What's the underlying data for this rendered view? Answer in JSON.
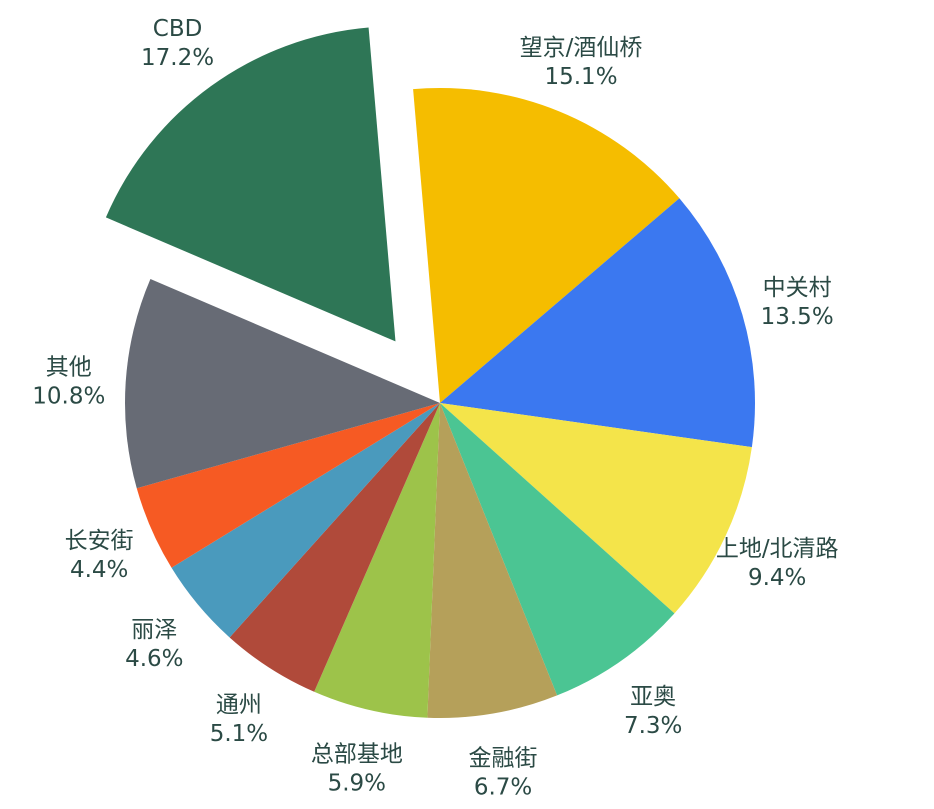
{
  "chart_data": {
    "type": "pie",
    "title": "",
    "start_angle_deg": -4.9,
    "direction": "clockwise",
    "exploded": [
      "CBD"
    ],
    "label_color": "#2b4a45",
    "slices": [
      {
        "label": "望京/酒仙桥",
        "value": 15.1,
        "value_label": "15.1%",
        "color": "#f5bd00"
      },
      {
        "label": "中关村",
        "value": 13.5,
        "value_label": "13.5%",
        "color": "#3b78f0"
      },
      {
        "label": "上地/北清路",
        "value": 9.4,
        "value_label": "9.4%",
        "color": "#f4e44a"
      },
      {
        "label": "亚奥",
        "value": 7.3,
        "value_label": "7.3%",
        "color": "#4bc593"
      },
      {
        "label": "金融街",
        "value": 6.7,
        "value_label": "6.7%",
        "color": "#b5a05a"
      },
      {
        "label": "总部基地",
        "value": 5.9,
        "value_label": "5.9%",
        "color": "#9dc34a"
      },
      {
        "label": "通州",
        "value": 5.1,
        "value_label": "5.1%",
        "color": "#b04a3a"
      },
      {
        "label": "丽泽",
        "value": 4.6,
        "value_label": "4.6%",
        "color": "#4a9abd"
      },
      {
        "label": "长安街",
        "value": 4.4,
        "value_label": "4.4%",
        "color": "#f65a23"
      },
      {
        "label": "其他",
        "value": 10.8,
        "value_label": "10.8%",
        "color": "#676b75"
      },
      {
        "label": "CBD",
        "value": 17.2,
        "value_label": "17.2%",
        "color": "#2e7656"
      }
    ]
  }
}
